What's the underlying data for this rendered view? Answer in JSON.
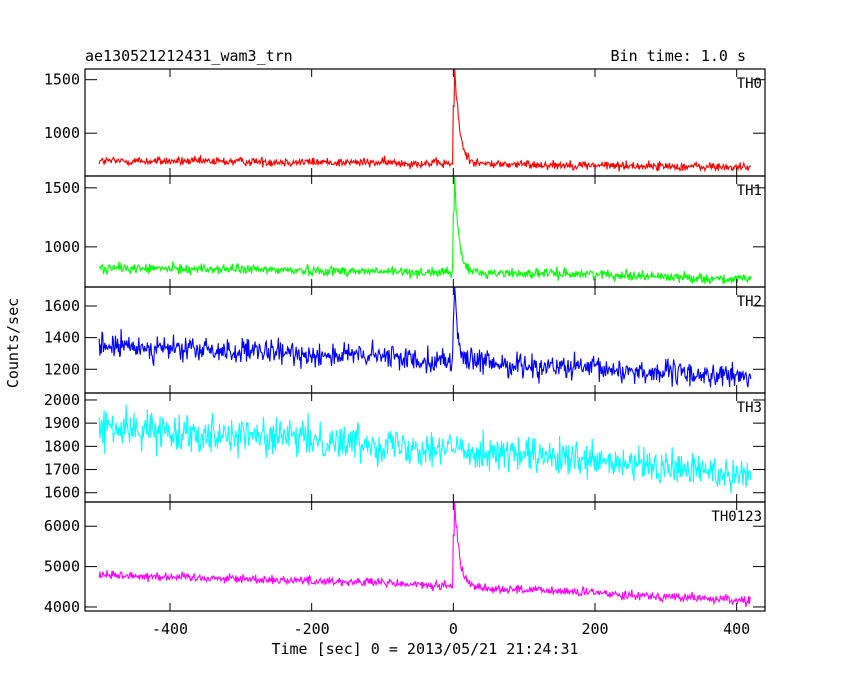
{
  "chart_data": {
    "type": "line",
    "title": "ae130521212431_wam3_trn",
    "subtitle": "Bin time: 1.0 s",
    "xlabel": "Time [sec] 0 = 2013/05/21 21:24:31",
    "ylabel": "Counts/sec",
    "xlim": [
      -520,
      440
    ],
    "x_ticks": [
      -400,
      -200,
      0,
      200,
      400
    ],
    "grid": false,
    "x_range_data": [
      -500,
      420
    ],
    "bin_time_s": 1.0,
    "panels": [
      {
        "name": "TH0",
        "color": "#ff0000",
        "ylim": [
          600,
          1600
        ],
        "y_ticks": [
          1000,
          1500
        ],
        "baseline": [
          [
            -500,
            740
          ],
          [
            -300,
            735
          ],
          [
            -100,
            725
          ],
          [
            0,
            715
          ],
          [
            200,
            700
          ],
          [
            420,
            680
          ]
        ],
        "noise": 30,
        "peak": 1600,
        "peak_time": 2,
        "decay_s": 6
      },
      {
        "name": "TH1",
        "color": "#00ff00",
        "ylim": [
          660,
          1600
        ],
        "y_ticks": [
          1000,
          1500
        ],
        "baseline": [
          [
            -500,
            820
          ],
          [
            -300,
            810
          ],
          [
            -100,
            790
          ],
          [
            0,
            780
          ],
          [
            200,
            770
          ],
          [
            420,
            720
          ]
        ],
        "noise": 30,
        "peak": 1600,
        "peak_time": 2,
        "decay_s": 5
      },
      {
        "name": "TH2",
        "color": "#0000ff",
        "ylim": [
          1050,
          1720
        ],
        "y_ticks": [
          1200,
          1400,
          1600
        ],
        "baseline": [
          [
            -500,
            1350
          ],
          [
            -300,
            1310
          ],
          [
            -100,
            1280
          ],
          [
            0,
            1250
          ],
          [
            200,
            1200
          ],
          [
            420,
            1150
          ]
        ],
        "noise": 55,
        "peak": 1720,
        "peak_time": 2,
        "decay_s": 4
      },
      {
        "name": "TH3",
        "color": "#00ffff",
        "ylim": [
          1560,
          2030
        ],
        "y_ticks": [
          1600,
          1700,
          1800,
          1900,
          2000
        ],
        "baseline": [
          [
            -500,
            1880
          ],
          [
            -300,
            1850
          ],
          [
            -100,
            1810
          ],
          [
            0,
            1790
          ],
          [
            200,
            1730
          ],
          [
            420,
            1680
          ]
        ],
        "noise": 55,
        "peak": 1790,
        "peak_time": 2,
        "decay_s": 1
      },
      {
        "name": "TH0123",
        "color": "#ff00ff",
        "ylim": [
          3900,
          6600
        ],
        "y_ticks": [
          4000,
          5000,
          6000
        ],
        "baseline": [
          [
            -500,
            4800
          ],
          [
            -300,
            4700
          ],
          [
            -100,
            4600
          ],
          [
            0,
            4500
          ],
          [
            200,
            4350
          ],
          [
            420,
            4150
          ]
        ],
        "noise": 80,
        "peak": 6600,
        "peak_time": 2,
        "decay_s": 6
      }
    ]
  }
}
